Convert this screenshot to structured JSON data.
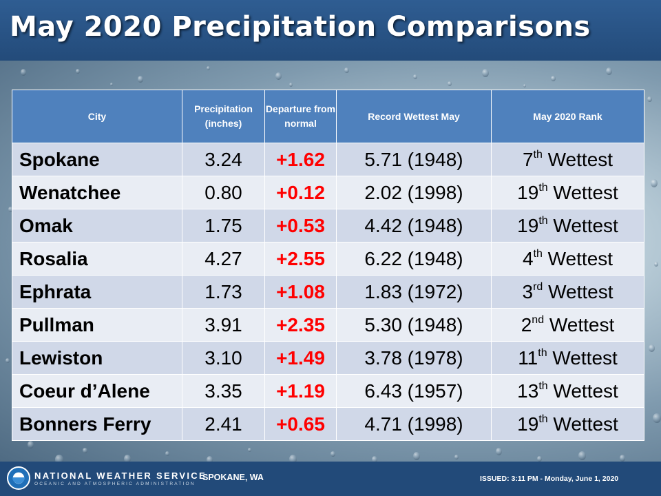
{
  "header": {
    "title": "May 2020 Precipitation Comparisons"
  },
  "table": {
    "columns": [
      "City",
      "Precipitation (inches)",
      "Departure from normal",
      "Record Wettest May",
      "May 2020 Rank"
    ],
    "rows": [
      {
        "city": "Spokane",
        "precip": "3.24",
        "departure": "+1.62",
        "record": "5.71 (1948)",
        "rank_num": "7",
        "rank_suffix": "th",
        "rank_word": " Wettest"
      },
      {
        "city": "Wenatchee",
        "precip": "0.80",
        "departure": "+0.12",
        "record": "2.02 (1998)",
        "rank_num": "19",
        "rank_suffix": "th",
        "rank_word": " Wettest"
      },
      {
        "city": "Omak",
        "precip": "1.75",
        "departure": "+0.53",
        "record": "4.42 (1948)",
        "rank_num": "19",
        "rank_suffix": "th",
        "rank_word": " Wettest"
      },
      {
        "city": "Rosalia",
        "precip": "4.27",
        "departure": "+2.55",
        "record": "6.22 (1948)",
        "rank_num": "4",
        "rank_suffix": "th",
        "rank_word": " Wettest"
      },
      {
        "city": "Ephrata",
        "precip": "1.73",
        "departure": "+1.08",
        "record": "1.83 (1972)",
        "rank_num": "3",
        "rank_suffix": "rd",
        "rank_word": " Wettest"
      },
      {
        "city": "Pullman",
        "precip": "3.91",
        "departure": "+2.35",
        "record": "5.30 (1948)",
        "rank_num": "2",
        "rank_suffix": "nd",
        "rank_word": " Wettest"
      },
      {
        "city": "Lewiston",
        "precip": "3.10",
        "departure": "+1.49",
        "record": "3.78 (1978)",
        "rank_num": "11",
        "rank_suffix": "th",
        "rank_word": " Wettest"
      },
      {
        "city": "Coeur d’Alene",
        "precip": "3.35",
        "departure": "+1.19",
        "record": "6.43 (1957)",
        "rank_num": "13",
        "rank_suffix": "th",
        "rank_word": " Wettest"
      },
      {
        "city": "Bonners Ferry",
        "precip": "2.41",
        "departure": "+0.65",
        "record": "4.71 (1998)",
        "rank_num": "19",
        "rank_suffix": "th",
        "rank_word": " Wettest"
      }
    ]
  },
  "chart_data": {
    "type": "table",
    "title": "May 2020 Precipitation Comparisons",
    "columns": [
      "City",
      "Precipitation (inches)",
      "Departure from normal",
      "Record Wettest May",
      "May 2020 Rank"
    ],
    "rows": [
      [
        "Spokane",
        3.24,
        1.62,
        "5.71 (1948)",
        "7th Wettest"
      ],
      [
        "Wenatchee",
        0.8,
        0.12,
        "2.02 (1998)",
        "19th Wettest"
      ],
      [
        "Omak",
        1.75,
        0.53,
        "4.42 (1948)",
        "19th Wettest"
      ],
      [
        "Rosalia",
        4.27,
        2.55,
        "6.22 (1948)",
        "4th Wettest"
      ],
      [
        "Ephrata",
        1.73,
        1.08,
        "1.83 (1972)",
        "3rd Wettest"
      ],
      [
        "Pullman",
        3.91,
        2.35,
        "5.30 (1948)",
        "2nd Wettest"
      ],
      [
        "Lewiston",
        3.1,
        1.49,
        "3.78 (1978)",
        "11th Wettest"
      ],
      [
        "Coeur d’Alene",
        3.35,
        1.19,
        "6.43 (1957)",
        "13th Wettest"
      ],
      [
        "Bonners Ferry",
        2.41,
        0.65,
        "4.71 (1998)",
        "19th Wettest"
      ]
    ]
  },
  "footer": {
    "org": "NATIONAL WEATHER SERVICE",
    "sub_org": "OCEANIC AND ATMOSPHERIC ADMINISTRATION",
    "office": "SPOKANE, WA",
    "issued": "ISSUED: 3:11 PM - Monday, June 1, 2020"
  },
  "colors": {
    "header_bg": "#4f81bd",
    "departure": "#ff0000",
    "row_odd": "#d0d8e8",
    "row_even": "#e9edf4",
    "banner": "#234b7a"
  }
}
